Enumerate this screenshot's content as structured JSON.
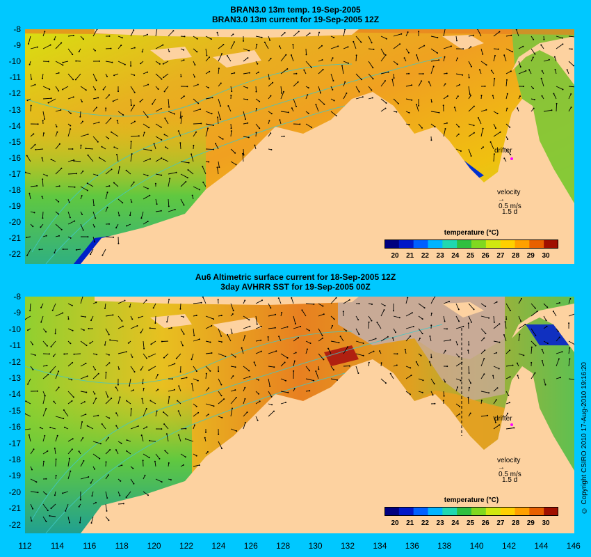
{
  "top_panel": {
    "title_line1": "BRAN3.0 13m temp. 19-Sep-2005",
    "title_line2": "BRAN3.0 13m current for 19-Sep-2005 12Z",
    "drifter_label": "drifter",
    "velocity_label": "velocity",
    "velocity_value": "0.5 m/s",
    "velocity_days": "1.5 d",
    "colorbar_title": "temperature (°C)"
  },
  "bottom_panel": {
    "title_line1": "Au6 Altimetric surface current for 18-Sep-2005 12Z",
    "title_line2": "3day AVHRR SST for 19-Sep-2005 00Z",
    "drifter_label": "drifter",
    "velocity_label": "velocity",
    "velocity_value": "0.5 m/s",
    "velocity_days": "1.5 d",
    "colorbar_title": "temperature (°C)"
  },
  "y_ticks": [
    "-8",
    "-9",
    "-10",
    "-11",
    "-12",
    "-13",
    "-14",
    "-15",
    "-16",
    "-17",
    "-18",
    "-19",
    "-20",
    "-21",
    "-22"
  ],
  "x_ticks": [
    "112",
    "114",
    "116",
    "118",
    "120",
    "122",
    "124",
    "126",
    "128",
    "130",
    "132",
    "134",
    "136",
    "138",
    "140",
    "142",
    "144",
    "146"
  ],
  "colorbar_ticks": [
    "20",
    "21",
    "22",
    "23",
    "24",
    "25",
    "26",
    "27",
    "28",
    "29",
    "30"
  ],
  "copyright": "© Copyright CSIRO 2010   17-Aug-2010 19:16:20",
  "colors": {
    "background": "#00c8ff",
    "land": "#fdd2a0",
    "cloud": "#c8aa96",
    "drifter": "#ff00ff",
    "colormap": [
      "#00007f",
      "#0018c8",
      "#0060ff",
      "#00b4ff",
      "#20d8b0",
      "#30c040",
      "#80d820",
      "#d0e810",
      "#ffd000",
      "#ffa000",
      "#e86000",
      "#a01000"
    ]
  }
}
